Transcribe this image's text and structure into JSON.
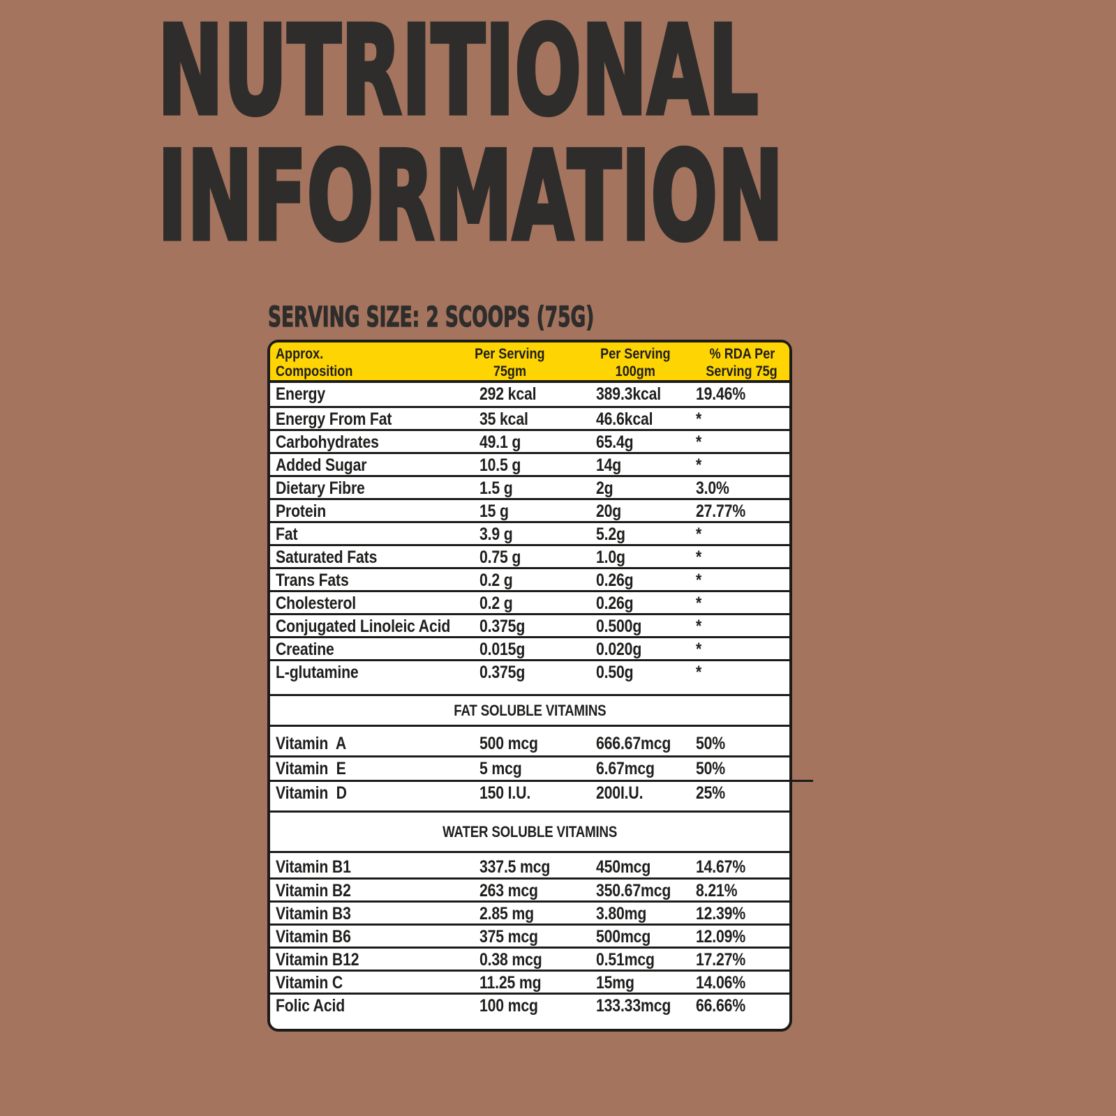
{
  "title": {
    "line1": "NUTRITIONAL",
    "line2": "INFORMATION"
  },
  "serving_size": "SERVING SIZE: 2 SCOOPS (75G)",
  "colors": {
    "background": "#a4745e",
    "header_yellow": "#fed402",
    "text": "#1f1e1d",
    "border": "#1c1b1a",
    "title": "#2e2d2b"
  },
  "table": {
    "headers": [
      {
        "line1": "Approx.",
        "line2": "Composition"
      },
      {
        "line1": "Per Serving",
        "line2": "75gm"
      },
      {
        "line1": "Per Serving",
        "line2": "100gm"
      },
      {
        "line1": "% RDA Per",
        "line2": "Serving 75g"
      }
    ],
    "sections": [
      {
        "rows": [
          {
            "label": "Energy",
            "v75": "292 kcal",
            "v100": "389.3kcal",
            "rda": "19.46%"
          },
          {
            "label": "Energy From Fat",
            "v75": "35 kcal",
            "v100": "46.6kcal",
            "rda": "*"
          },
          {
            "label": "Carbohydrates",
            "v75": "49.1 g",
            "v100": "65.4g",
            "rda": "*"
          },
          {
            "label": "Added Sugar",
            "v75": "10.5 g",
            "v100": "14g",
            "rda": "*"
          },
          {
            "label": "Dietary Fibre",
            "v75": "1.5 g",
            "v100": "2g",
            "rda": "3.0%"
          },
          {
            "label": "Protein",
            "v75": "15 g",
            "v100": "20g",
            "rda": "27.77%"
          },
          {
            "label": "Fat",
            "v75": "3.9 g",
            "v100": "5.2g",
            "rda": "*"
          },
          {
            "label": "Saturated Fats",
            "v75": "0.75 g",
            "v100": "1.0g",
            "rda": "*"
          },
          {
            "label": "Trans Fats",
            "v75": "0.2 g",
            "v100": "0.26g",
            "rda": "*"
          },
          {
            "label": "Cholesterol",
            "v75": "0.2 g",
            "v100": "0.26g",
            "rda": "*"
          },
          {
            "label": "Conjugated Linoleic Acid",
            "v75": "0.375g",
            "v100": "0.500g",
            "rda": "*"
          },
          {
            "label": "Creatine",
            "v75": "0.015g",
            "v100": "0.020g",
            "rda": "*"
          },
          {
            "label": "L-glutamine",
            "v75": "0.375g",
            "v100": "0.50g",
            "rda": "*"
          }
        ]
      },
      {
        "title": "FAT SOLUBLE VITAMINS",
        "rows": [
          {
            "label": "Vitamin  A",
            "v75": "500 mcg",
            "v100": "666.67mcg",
            "rda": "50%"
          },
          {
            "label": "Vitamin  E",
            "v75": "5 mcg",
            "v100": "6.67mcg",
            "rda": "50%"
          },
          {
            "label": "Vitamin  D",
            "v75": "150 I.U.",
            "v100": "200I.U.",
            "rda": "25%"
          }
        ]
      },
      {
        "title": "WATER SOLUBLE VITAMINS",
        "rows": [
          {
            "label": "Vitamin B1",
            "v75": "337.5 mcg",
            "v100": "450mcg",
            "rda": "14.67%"
          },
          {
            "label": "Vitamin B2",
            "v75": "263 mcg",
            "v100": "350.67mcg",
            "rda": "8.21%"
          },
          {
            "label": "Vitamin B3",
            "v75": "2.85 mg",
            "v100": "3.80mg",
            "rda": "12.39%"
          },
          {
            "label": "Vitamin B6",
            "v75": "375 mcg",
            "v100": "500mcg",
            "rda": "12.09%"
          },
          {
            "label": "Vitamin B12",
            "v75": "0.38 mcg",
            "v100": "0.51mcg",
            "rda": "17.27%"
          },
          {
            "label": "Vitamin C",
            "v75": "11.25 mg",
            "v100": "15mg",
            "rda": "14.06%"
          },
          {
            "label": "Folic Acid",
            "v75": "100 mcg",
            "v100": "133.33mcg",
            "rda": "66.66%"
          }
        ]
      }
    ]
  }
}
